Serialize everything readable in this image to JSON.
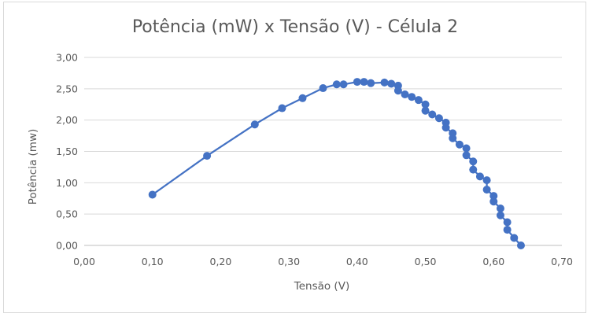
{
  "chart_data": {
    "type": "scatter",
    "title": "Potência (mW) x Tensão (V) - Célula 2",
    "xlabel": "Tensão (V)",
    "ylabel": "Potência (mw)",
    "xlim": [
      0,
      0.7
    ],
    "ylim": [
      0,
      3
    ],
    "x_ticks": [
      "0,00",
      "0,10",
      "0,20",
      "0,30",
      "0,40",
      "0,50",
      "0,60",
      "0,70"
    ],
    "y_ticks": [
      "0,00",
      "0,50",
      "1,00",
      "1,50",
      "2,00",
      "2,50",
      "3,00"
    ],
    "grid": "horizontal",
    "legend": "none",
    "series": [
      {
        "color": "#4472c4",
        "x": [
          0.1,
          0.18,
          0.25,
          0.29,
          0.32,
          0.35,
          0.37,
          0.38,
          0.4,
          0.41,
          0.42,
          0.44,
          0.45,
          0.46,
          0.46,
          0.47,
          0.48,
          0.49,
          0.5,
          0.5,
          0.51,
          0.52,
          0.53,
          0.53,
          0.54,
          0.54,
          0.55,
          0.56,
          0.56,
          0.57,
          0.57,
          0.58,
          0.59,
          0.59,
          0.6,
          0.6,
          0.61,
          0.61,
          0.62,
          0.62,
          0.63,
          0.64
        ],
        "y": [
          0.81,
          1.43,
          1.93,
          2.19,
          2.35,
          2.51,
          2.57,
          2.57,
          2.61,
          2.61,
          2.59,
          2.6,
          2.58,
          2.55,
          2.47,
          2.41,
          2.37,
          2.32,
          2.25,
          2.15,
          2.09,
          2.03,
          1.96,
          1.88,
          1.79,
          1.71,
          1.61,
          1.55,
          1.44,
          1.34,
          1.21,
          1.1,
          1.04,
          0.89,
          0.79,
          0.7,
          0.59,
          0.48,
          0.37,
          0.25,
          0.12,
          0.0
        ]
      }
    ]
  }
}
